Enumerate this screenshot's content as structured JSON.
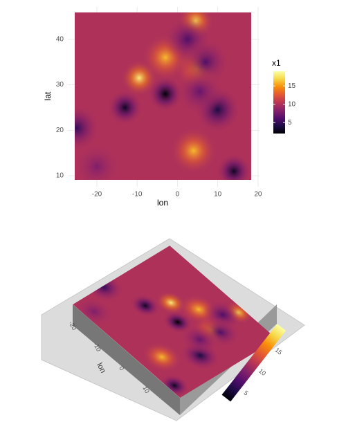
{
  "chart_data": {
    "type": "raster",
    "x_label": "lon",
    "y_label": "lat",
    "xlim": [
      -25.5,
      18.3
    ],
    "ylim": [
      9.1,
      45.9
    ],
    "xticks": [
      -20,
      -10,
      0,
      10,
      20
    ],
    "yticks": [
      10,
      20,
      30,
      40
    ],
    "base_value": 10,
    "x": [
      -9.5,
      -3,
      4.5,
      5,
      4,
      -3,
      -13,
      -25,
      14,
      10,
      2.5,
      7,
      5.5,
      -20
    ],
    "y": [
      31.5,
      36,
      44,
      33.5,
      15.5,
      28,
      25,
      20.5,
      11,
      24.5,
      40,
      35,
      28.5,
      12
    ],
    "values": [
      18,
      16,
      17,
      15,
      16,
      2,
      3,
      5,
      3,
      4,
      6,
      6,
      7,
      8
    ],
    "legend": {
      "title": "x1",
      "lim": [
        2,
        19
      ],
      "ticks": [
        5,
        10,
        15
      ]
    },
    "colormap": [
      "#000004",
      "#1f0c48",
      "#550f6d",
      "#88226a",
      "#ba3655",
      "#e35933",
      "#f98e09",
      "#f6d746",
      "#fcffa4"
    ],
    "grid": true
  }
}
